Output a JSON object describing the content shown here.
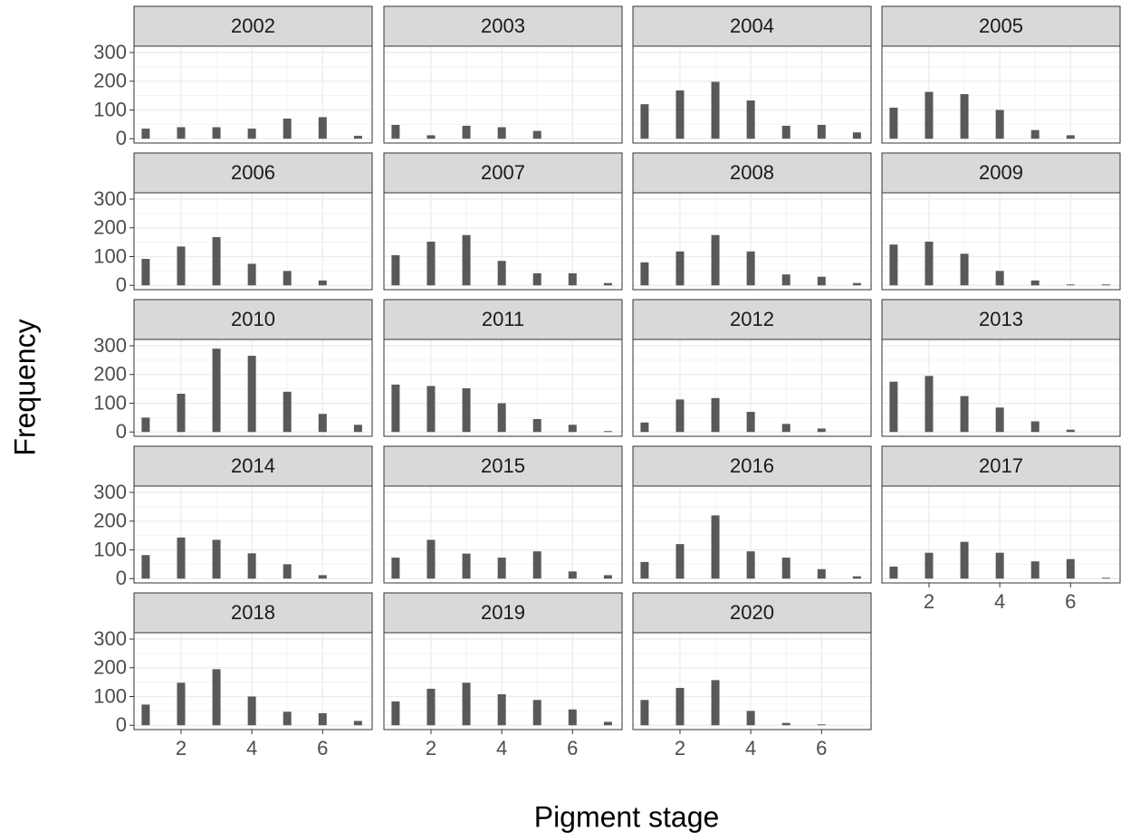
{
  "axis_titles": {
    "x": "Pigment stage",
    "y": "Frequency"
  },
  "chart_data": [
    {
      "type": "bar",
      "title": "2002",
      "x": [
        1,
        2,
        3,
        4,
        5,
        6,
        7
      ],
      "values": [
        35,
        40,
        40,
        35,
        70,
        75,
        10
      ],
      "color": "#595959",
      "xlim": [
        0.67,
        7.4
      ],
      "ylim": [
        -15,
        322
      ],
      "xticks": [
        2,
        4,
        6
      ],
      "yticks": [
        0,
        100,
        200,
        300
      ],
      "grid": true
    },
    {
      "type": "bar",
      "title": "2003",
      "x": [
        1,
        2,
        3,
        4,
        5
      ],
      "values": [
        48,
        12,
        45,
        40,
        27
      ],
      "color": "#595959",
      "xlim": [
        0.67,
        7.4
      ],
      "ylim": [
        -15,
        322
      ],
      "xticks": [
        2,
        4,
        6
      ],
      "yticks": [
        0,
        100,
        200,
        300
      ],
      "grid": true
    },
    {
      "type": "bar",
      "title": "2004",
      "x": [
        1,
        2,
        3,
        4,
        5,
        6,
        7
      ],
      "values": [
        120,
        168,
        198,
        133,
        45,
        48,
        22
      ],
      "color": "#595959",
      "xlim": [
        0.67,
        7.4
      ],
      "ylim": [
        -15,
        322
      ],
      "xticks": [
        2,
        4,
        6
      ],
      "yticks": [
        0,
        100,
        200,
        300
      ],
      "grid": true
    },
    {
      "type": "bar",
      "title": "2005",
      "x": [
        1,
        2,
        3,
        4,
        5,
        6
      ],
      "values": [
        108,
        163,
        155,
        100,
        30,
        12
      ],
      "color": "#595959",
      "xlim": [
        0.67,
        7.4
      ],
      "ylim": [
        -15,
        322
      ],
      "xticks": [
        2,
        4,
        6
      ],
      "yticks": [
        0,
        100,
        200,
        300
      ],
      "grid": true
    },
    {
      "type": "bar",
      "title": "2006",
      "x": [
        1,
        2,
        3,
        4,
        5,
        6
      ],
      "values": [
        92,
        135,
        168,
        75,
        50,
        17
      ],
      "color": "#595959",
      "xlim": [
        0.67,
        7.4
      ],
      "ylim": [
        -15,
        322
      ],
      "xticks": [
        2,
        4,
        6
      ],
      "yticks": [
        0,
        100,
        200,
        300
      ],
      "grid": true
    },
    {
      "type": "bar",
      "title": "2007",
      "x": [
        1,
        2,
        3,
        4,
        5,
        6,
        7
      ],
      "values": [
        105,
        152,
        175,
        85,
        42,
        42,
        8
      ],
      "color": "#595959",
      "xlim": [
        0.67,
        7.4
      ],
      "ylim": [
        -15,
        322
      ],
      "xticks": [
        2,
        4,
        6
      ],
      "yticks": [
        0,
        100,
        200,
        300
      ],
      "grid": true
    },
    {
      "type": "bar",
      "title": "2008",
      "x": [
        1,
        2,
        3,
        4,
        5,
        6,
        7
      ],
      "values": [
        80,
        118,
        175,
        118,
        38,
        30,
        8
      ],
      "color": "#595959",
      "xlim": [
        0.67,
        7.4
      ],
      "ylim": [
        -15,
        322
      ],
      "xticks": [
        2,
        4,
        6
      ],
      "yticks": [
        0,
        100,
        200,
        300
      ],
      "grid": true
    },
    {
      "type": "bar",
      "title": "2009",
      "x": [
        1,
        2,
        3,
        4,
        5,
        6,
        7
      ],
      "values": [
        142,
        152,
        110,
        50,
        17,
        3,
        3
      ],
      "color": "#595959",
      "xlim": [
        0.67,
        7.4
      ],
      "ylim": [
        -15,
        322
      ],
      "xticks": [
        2,
        4,
        6
      ],
      "yticks": [
        0,
        100,
        200,
        300
      ],
      "grid": true
    },
    {
      "type": "bar",
      "title": "2010",
      "x": [
        1,
        2,
        3,
        4,
        5,
        6,
        7
      ],
      "values": [
        50,
        133,
        290,
        265,
        140,
        63,
        25
      ],
      "color": "#595959",
      "xlim": [
        0.67,
        7.4
      ],
      "ylim": [
        -15,
        322
      ],
      "xticks": [
        2,
        4,
        6
      ],
      "yticks": [
        0,
        100,
        200,
        300
      ],
      "grid": true
    },
    {
      "type": "bar",
      "title": "2011",
      "x": [
        1,
        2,
        3,
        4,
        5,
        6,
        7
      ],
      "values": [
        165,
        160,
        152,
        100,
        45,
        25,
        3
      ],
      "color": "#595959",
      "xlim": [
        0.67,
        7.4
      ],
      "ylim": [
        -15,
        322
      ],
      "xticks": [
        2,
        4,
        6
      ],
      "yticks": [
        0,
        100,
        200,
        300
      ],
      "grid": true
    },
    {
      "type": "bar",
      "title": "2012",
      "x": [
        1,
        2,
        3,
        4,
        5,
        6
      ],
      "values": [
        33,
        113,
        118,
        70,
        28,
        12
      ],
      "color": "#595959",
      "xlim": [
        0.67,
        7.4
      ],
      "ylim": [
        -15,
        322
      ],
      "xticks": [
        2,
        4,
        6
      ],
      "yticks": [
        0,
        100,
        200,
        300
      ],
      "grid": true
    },
    {
      "type": "bar",
      "title": "2013",
      "x": [
        1,
        2,
        3,
        4,
        5,
        6
      ],
      "values": [
        175,
        195,
        125,
        85,
        37,
        8
      ],
      "color": "#595959",
      "xlim": [
        0.67,
        7.4
      ],
      "ylim": [
        -15,
        322
      ],
      "xticks": [
        2,
        4,
        6
      ],
      "yticks": [
        0,
        100,
        200,
        300
      ],
      "grid": true
    },
    {
      "type": "bar",
      "title": "2014",
      "x": [
        1,
        2,
        3,
        4,
        5,
        6
      ],
      "values": [
        82,
        143,
        135,
        88,
        50,
        12
      ],
      "color": "#595959",
      "xlim": [
        0.67,
        7.4
      ],
      "ylim": [
        -15,
        322
      ],
      "xticks": [
        2,
        4,
        6
      ],
      "yticks": [
        0,
        100,
        200,
        300
      ],
      "grid": true
    },
    {
      "type": "bar",
      "title": "2015",
      "x": [
        1,
        2,
        3,
        4,
        5,
        6,
        7
      ],
      "values": [
        73,
        135,
        87,
        73,
        95,
        25,
        12
      ],
      "color": "#595959",
      "xlim": [
        0.67,
        7.4
      ],
      "ylim": [
        -15,
        322
      ],
      "xticks": [
        2,
        4,
        6
      ],
      "yticks": [
        0,
        100,
        200,
        300
      ],
      "grid": true
    },
    {
      "type": "bar",
      "title": "2016",
      "x": [
        1,
        2,
        3,
        4,
        5,
        6,
        7
      ],
      "values": [
        58,
        120,
        220,
        95,
        73,
        33,
        8
      ],
      "color": "#595959",
      "xlim": [
        0.67,
        7.4
      ],
      "ylim": [
        -15,
        322
      ],
      "xticks": [
        2,
        4,
        6
      ],
      "yticks": [
        0,
        100,
        200,
        300
      ],
      "grid": true
    },
    {
      "type": "bar",
      "title": "2017",
      "x": [
        1,
        2,
        3,
        4,
        5,
        6,
        7
      ],
      "values": [
        42,
        90,
        128,
        90,
        60,
        68,
        3
      ],
      "color": "#595959",
      "xlim": [
        0.67,
        7.4
      ],
      "ylim": [
        -15,
        322
      ],
      "xticks": [
        2,
        4,
        6
      ],
      "yticks": [
        0,
        100,
        200,
        300
      ],
      "grid": true
    },
    {
      "type": "bar",
      "title": "2018",
      "x": [
        1,
        2,
        3,
        4,
        5,
        6,
        7
      ],
      "values": [
        72,
        148,
        195,
        100,
        47,
        42,
        15
      ],
      "color": "#595959",
      "xlim": [
        0.67,
        7.4
      ],
      "ylim": [
        -15,
        322
      ],
      "xticks": [
        2,
        4,
        6
      ],
      "yticks": [
        0,
        100,
        200,
        300
      ],
      "grid": true
    },
    {
      "type": "bar",
      "title": "2019",
      "x": [
        1,
        2,
        3,
        4,
        5,
        6,
        7
      ],
      "values": [
        83,
        127,
        148,
        108,
        88,
        55,
        12
      ],
      "color": "#595959",
      "xlim": [
        0.67,
        7.4
      ],
      "ylim": [
        -15,
        322
      ],
      "xticks": [
        2,
        4,
        6
      ],
      "yticks": [
        0,
        100,
        200,
        300
      ],
      "grid": true
    },
    {
      "type": "bar",
      "title": "2020",
      "x": [
        1,
        2,
        3,
        4,
        5,
        6
      ],
      "values": [
        88,
        130,
        157,
        50,
        8,
        3
      ],
      "color": "#595959",
      "xlim": [
        0.67,
        7.4
      ],
      "ylim": [
        -15,
        322
      ],
      "xticks": [
        2,
        4,
        6
      ],
      "yticks": [
        0,
        100,
        200,
        300
      ],
      "grid": true
    }
  ]
}
